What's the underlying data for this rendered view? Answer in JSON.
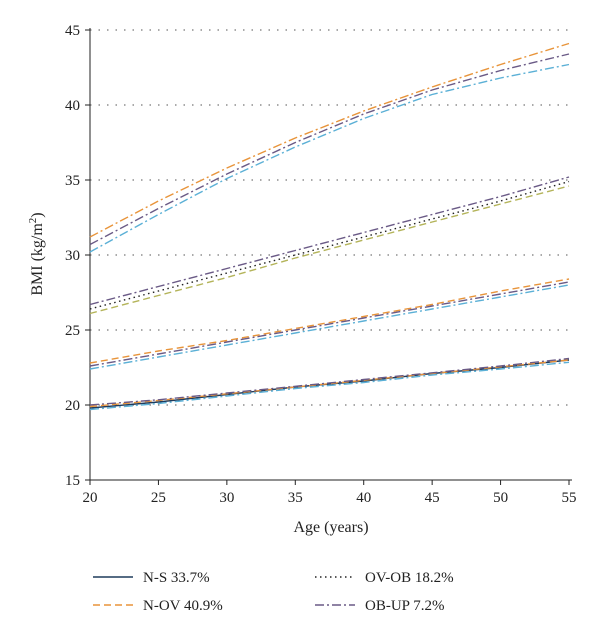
{
  "chart_data": {
    "type": "line",
    "xlabel": "Age (years)",
    "ylabel": {
      "pre": "BMI (kg/m",
      "sup": "2",
      "post": ")"
    },
    "xlim": [
      20,
      55
    ],
    "ylim": [
      15,
      45
    ],
    "xticks": [
      20,
      25,
      30,
      35,
      40,
      45,
      50,
      55
    ],
    "yticks": [
      15,
      20,
      25,
      30,
      35,
      40,
      45
    ],
    "grid": "horizontal dotted",
    "legend_position": "bottom",
    "legend": [
      {
        "label": "N-S 33.7%",
        "style": "solid",
        "color": "#1f3b5c"
      },
      {
        "label": "OV-OB 18.2%",
        "style": "dotted",
        "color": "#222222"
      },
      {
        "label": "N-OV 40.9%",
        "style": "dashed",
        "color": "#e8943a"
      },
      {
        "label": "OB-UP 7.2%",
        "style": "dashdot",
        "color": "#6a5a86"
      }
    ],
    "series": [
      {
        "group": "N-S 33.7%",
        "color": "#1f3b5c",
        "style": "solid",
        "x": [
          20,
          25,
          30,
          35,
          40,
          45,
          50,
          55
        ],
        "y": [
          19.8,
          20.2,
          20.7,
          21.2,
          21.6,
          22.1,
          22.5,
          23.0
        ]
      },
      {
        "group": "N-S 33.7%",
        "color": "#e8943a",
        "style": "dashed",
        "x": [
          20,
          25,
          30,
          35,
          40,
          45,
          50,
          55
        ],
        "y": [
          19.9,
          20.3,
          20.75,
          21.2,
          21.65,
          22.1,
          22.55,
          23.0
        ]
      },
      {
        "group": "N-S 33.7%",
        "color": "#6a5a86",
        "style": "dashdot",
        "x": [
          20,
          25,
          30,
          35,
          40,
          45,
          50,
          55
        ],
        "y": [
          20.0,
          20.35,
          20.8,
          21.25,
          21.7,
          22.15,
          22.6,
          23.1
        ]
      },
      {
        "group": "N-S 33.7%",
        "color": "#5bb0d6",
        "style": "dashdot",
        "x": [
          20,
          25,
          30,
          35,
          40,
          45,
          50,
          55
        ],
        "y": [
          19.7,
          20.1,
          20.6,
          21.1,
          21.5,
          22.0,
          22.4,
          22.85
        ]
      },
      {
        "group": "N-OV 40.9%",
        "color": "#e8943a",
        "style": "dashed",
        "x": [
          20,
          25,
          30,
          35,
          40,
          45,
          50,
          55
        ],
        "y": [
          22.8,
          23.6,
          24.3,
          25.1,
          25.9,
          26.7,
          27.6,
          28.4
        ]
      },
      {
        "group": "N-OV 40.9%",
        "color": "#6a5a86",
        "style": "dashdot",
        "x": [
          20,
          25,
          30,
          35,
          40,
          45,
          50,
          55
        ],
        "y": [
          22.6,
          23.4,
          24.2,
          25.0,
          25.8,
          26.6,
          27.4,
          28.2
        ]
      },
      {
        "group": "N-OV 40.9%",
        "color": "#5bb0d6",
        "style": "dashdot",
        "x": [
          20,
          25,
          30,
          35,
          40,
          45,
          50,
          55
        ],
        "y": [
          22.4,
          23.2,
          24.0,
          24.8,
          25.6,
          26.4,
          27.2,
          28.0
        ]
      },
      {
        "group": "OV-OB 18.2%",
        "color": "#222222",
        "style": "dotted",
        "x": [
          20,
          25,
          30,
          35,
          40,
          45,
          50,
          55
        ],
        "y": [
          26.4,
          27.6,
          28.8,
          30.0,
          31.2,
          32.4,
          33.6,
          34.9
        ]
      },
      {
        "group": "OV-OB 18.2%",
        "color": "#b4b45a",
        "style": "dashed",
        "x": [
          20,
          25,
          30,
          35,
          40,
          45,
          50,
          55
        ],
        "y": [
          26.1,
          27.3,
          28.5,
          29.8,
          31.0,
          32.2,
          33.4,
          34.6
        ]
      },
      {
        "group": "OV-OB 18.2%",
        "color": "#6a5a86",
        "style": "dashdot",
        "x": [
          20,
          25,
          30,
          35,
          40,
          45,
          50,
          55
        ],
        "y": [
          26.7,
          27.9,
          29.1,
          30.3,
          31.5,
          32.7,
          33.9,
          35.2
        ]
      },
      {
        "group": "OB-UP 7.2%",
        "color": "#e8943a",
        "style": "dashdot",
        "x": [
          20,
          25,
          30,
          35,
          40,
          45,
          50,
          55
        ],
        "y": [
          31.2,
          33.6,
          35.8,
          37.8,
          39.6,
          41.2,
          42.7,
          44.1
        ]
      },
      {
        "group": "OB-UP 7.2%",
        "color": "#6a5a86",
        "style": "dashdot",
        "x": [
          20,
          25,
          30,
          35,
          40,
          45,
          50,
          55
        ],
        "y": [
          30.7,
          33.1,
          35.4,
          37.5,
          39.4,
          41.0,
          42.3,
          43.4
        ]
      },
      {
        "group": "OB-UP 7.2%",
        "color": "#5bb0d6",
        "style": "dashdot",
        "x": [
          20,
          25,
          30,
          35,
          40,
          45,
          50,
          55
        ],
        "y": [
          30.2,
          32.7,
          35.1,
          37.2,
          39.1,
          40.7,
          41.8,
          42.7
        ]
      }
    ]
  }
}
